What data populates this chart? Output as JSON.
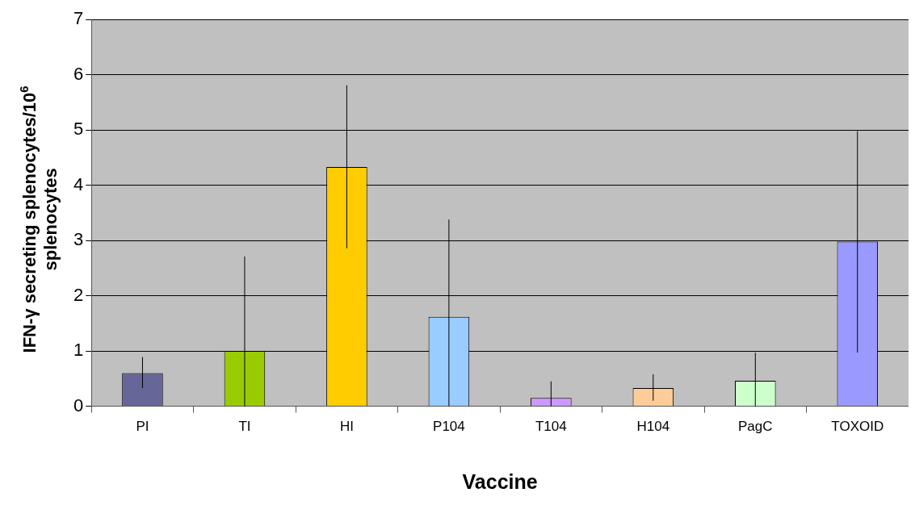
{
  "chart_data": {
    "type": "bar",
    "xlabel": "Vaccine",
    "ylabel": "IFN-γ secreting splenocytes/10$^{6}$ splenocytes",
    "categories": [
      "PI",
      "TI",
      "HI",
      "P104",
      "T104",
      "H104",
      "PagC",
      "TOXOID"
    ],
    "values": [
      0.6,
      1.0,
      4.33,
      1.62,
      0.15,
      0.33,
      0.46,
      2.98
    ],
    "colors": [
      "#666699",
      "#99cc00",
      "#ffcc00",
      "#99ccff",
      "#cc99ff",
      "#ffcc99",
      "#ccffcc",
      "#9999ff"
    ],
    "errors": [
      [
        0.33,
        0.89
      ],
      [
        0,
        2.71
      ],
      [
        2.86,
        5.81
      ],
      [
        0,
        3.38
      ],
      [
        0,
        0.45
      ],
      [
        0.1,
        0.58
      ],
      [
        0,
        0.97
      ],
      [
        0.97,
        4.98
      ]
    ],
    "ylim": [
      0,
      7
    ],
    "yticks": [
      0,
      1,
      2,
      3,
      4,
      5,
      6,
      7
    ],
    "grid": "y",
    "legend": false
  }
}
